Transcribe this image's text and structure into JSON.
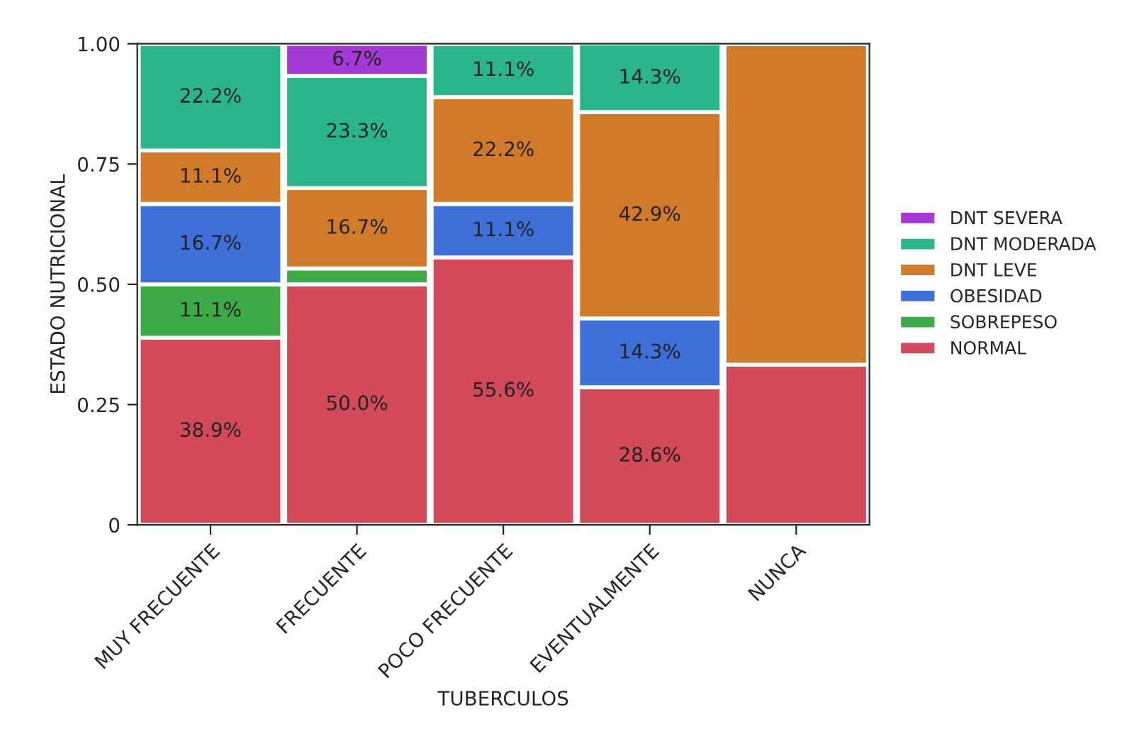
{
  "chart_data": {
    "type": "bar",
    "stacked": true,
    "xlabel": "TUBERCULOS",
    "ylabel": "ESTADO NUTRICIONAL",
    "categories": [
      "MUY FRECUENTE",
      "FRECUENTE",
      "POCO FRECUENTE",
      "EVENTUALMENTE",
      "NUNCA"
    ],
    "ylim": [
      0,
      1
    ],
    "yticks": [
      0,
      {
        "value": 0.25,
        "label": "0.25"
      },
      {
        "value": 0.5,
        "label": "0.50"
      },
      {
        "value": 0.75,
        "label": "0.75"
      },
      {
        "value": 1,
        "label": "1.00"
      }
    ],
    "legend": "right",
    "series": [
      {
        "name": "NORMAL",
        "color": "#d24a5a",
        "values": [
          0.389,
          0.5,
          0.556,
          0.286,
          0.333
        ],
        "value_labels": [
          "38.9%",
          "50.0%",
          "55.6%",
          "28.6%",
          null
        ]
      },
      {
        "name": "SOBREPESO",
        "color": "#3daa48",
        "values": [
          0.111,
          0.033,
          null,
          null,
          null
        ],
        "value_labels": [
          "11.1%",
          null,
          null,
          null,
          null
        ]
      },
      {
        "name": "OBESIDAD",
        "color": "#3f6fd8",
        "values": [
          0.167,
          null,
          0.111,
          0.143,
          null
        ],
        "value_labels": [
          "16.7%",
          null,
          "11.1%",
          "14.3%",
          null
        ]
      },
      {
        "name": "DNT LEVE",
        "color": "#d07a2a",
        "values": [
          0.111,
          0.167,
          0.222,
          0.429,
          0.667
        ],
        "value_labels": [
          "11.1%",
          "16.7%",
          "22.2%",
          "42.9%",
          null
        ]
      },
      {
        "name": "DNT MODERADA",
        "color": "#2ab58b",
        "values": [
          0.222,
          0.233,
          0.111,
          0.143,
          null
        ],
        "value_labels": [
          "22.2%",
          "23.3%",
          "11.1%",
          "14.3%",
          null
        ]
      },
      {
        "name": "DNT SEVERA",
        "color": "#a33ad6",
        "values": [
          null,
          0.067,
          null,
          null,
          null
        ],
        "value_labels": [
          null,
          "6.7%",
          null,
          null,
          null
        ]
      }
    ]
  }
}
